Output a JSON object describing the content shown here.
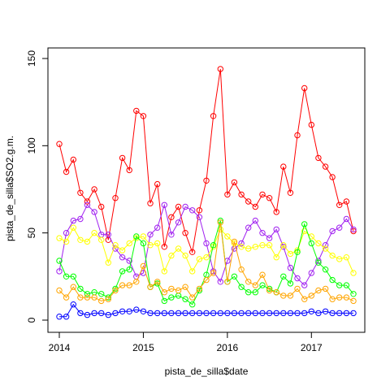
{
  "chart_data": {
    "type": "line",
    "title": "",
    "xlabel": "pista_de_silla$date",
    "ylabel": "pista_de_silla$SO2.g.m.",
    "xlim": [
      2014.0,
      2017.5
    ],
    "ylim": [
      0,
      150
    ],
    "x_ticks": [
      2014,
      2015,
      2016,
      2017
    ],
    "x_tick_labels": [
      "2014",
      "2015",
      "2016",
      "2017"
    ],
    "y_ticks": [
      0,
      50,
      100,
      150
    ],
    "y_tick_labels": [
      "0",
      "50",
      "100",
      "150"
    ],
    "grid": false,
    "legend": "none",
    "marker": "open-circle",
    "x": [
      2014.0,
      2014.083,
      2014.167,
      2014.25,
      2014.333,
      2014.417,
      2014.5,
      2014.583,
      2014.667,
      2014.75,
      2014.833,
      2014.917,
      2015.0,
      2015.083,
      2015.167,
      2015.25,
      2015.333,
      2015.417,
      2015.5,
      2015.583,
      2015.667,
      2015.75,
      2015.833,
      2015.917,
      2016.0,
      2016.083,
      2016.167,
      2016.25,
      2016.333,
      2016.417,
      2016.5,
      2016.583,
      2016.667,
      2016.75,
      2016.833,
      2016.917,
      2017.0,
      2017.083,
      2017.167,
      2017.25,
      2017.333,
      2017.417,
      2017.5
    ],
    "series": [
      {
        "color": "#FF0000",
        "values": [
          101,
          85,
          92,
          73,
          68,
          75,
          65,
          46,
          70,
          93,
          86,
          120,
          117,
          67,
          78,
          42,
          59,
          65,
          50,
          39,
          63,
          80,
          117,
          144,
          72,
          79,
          72,
          68,
          65,
          72,
          70,
          62,
          88,
          73,
          106,
          133,
          112,
          93,
          88,
          82,
          66,
          68,
          51
        ]
      },
      {
        "color": "#A020F0",
        "values": [
          28,
          50,
          57,
          58,
          66,
          62,
          49,
          49,
          41,
          36,
          34,
          25,
          27,
          49,
          53,
          66,
          49,
          56,
          65,
          63,
          59,
          44,
          28,
          22,
          34,
          41,
          44,
          53,
          57,
          50,
          47,
          52,
          42,
          30,
          24,
          20,
          27,
          34,
          43,
          51,
          53,
          58,
          52
        ]
      },
      {
        "color": "#FFFF00",
        "values": [
          47,
          45,
          53,
          46,
          45,
          50,
          46,
          33,
          43,
          40,
          44,
          47,
          48,
          43,
          44,
          28,
          37,
          41,
          37,
          28,
          35,
          36,
          42,
          52,
          48,
          44,
          42,
          41,
          42,
          43,
          43,
          36,
          43,
          38,
          40,
          51,
          48,
          44,
          41,
          37,
          35,
          36,
          27
        ]
      },
      {
        "color": "#00FF00",
        "values": [
          34,
          25,
          25,
          18,
          15,
          16,
          15,
          13,
          18,
          28,
          29,
          48,
          44,
          19,
          21,
          11,
          13,
          14,
          12,
          9,
          17,
          26,
          43,
          57,
          22,
          25,
          19,
          16,
          16,
          20,
          18,
          16,
          25,
          21,
          39,
          55,
          44,
          33,
          29,
          23,
          20,
          20,
          15
        ]
      },
      {
        "color": "#FFA500",
        "values": [
          17,
          13,
          19,
          13,
          13,
          13,
          11,
          12,
          17,
          20,
          20,
          22,
          31,
          19,
          22,
          16,
          18,
          17,
          19,
          13,
          18,
          23,
          27,
          56,
          22,
          45,
          29,
          22,
          20,
          26,
          17,
          16,
          14,
          14,
          18,
          12,
          14,
          17,
          18,
          12,
          13,
          13,
          11
        ]
      },
      {
        "color": "#0000FF",
        "values": [
          2,
          2,
          9,
          4,
          3,
          4,
          4,
          3,
          4,
          5,
          5,
          6,
          5,
          4,
          4,
          4,
          4,
          4,
          4,
          4,
          4,
          4,
          4,
          4,
          4,
          4,
          4,
          4,
          4,
          4,
          4,
          4,
          4,
          4,
          4,
          4,
          5,
          4,
          5,
          4,
          4,
          4,
          4
        ]
      }
    ]
  }
}
